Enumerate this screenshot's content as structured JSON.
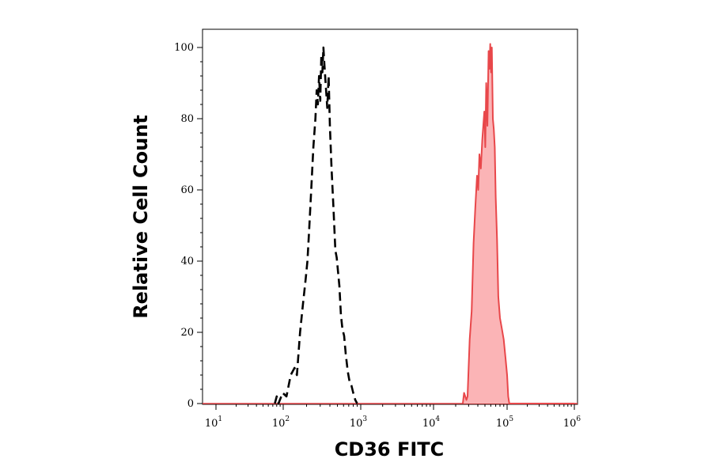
{
  "chart_data": {
    "type": "area",
    "title": "",
    "xlabel": "CD36 FITC",
    "ylabel": "Relative Cell Count",
    "x_scale": "log",
    "xlim": [
      10,
      1000000
    ],
    "ylim": [
      0,
      100
    ],
    "x_ticks": [
      {
        "base": "10",
        "exp": "1",
        "value": 10
      },
      {
        "base": "10",
        "exp": "2",
        "value": 100
      },
      {
        "base": "10",
        "exp": "3",
        "value": 1000
      },
      {
        "base": "10",
        "exp": "4",
        "value": 10000
      },
      {
        "base": "10",
        "exp": "5",
        "value": 100000
      },
      {
        "base": "10",
        "exp": "6",
        "value": 1000000
      }
    ],
    "y_ticks": [
      "0",
      "20",
      "40",
      "60",
      "80",
      "100"
    ],
    "series": [
      {
        "style": "dashed",
        "color": "#000000",
        "points": [
          [
            75,
            0
          ],
          [
            80,
            2
          ],
          [
            85,
            0
          ],
          [
            98,
            3
          ],
          [
            110,
            2
          ],
          [
            125,
            8
          ],
          [
            140,
            10
          ],
          [
            150,
            8
          ],
          [
            165,
            20
          ],
          [
            180,
            28
          ],
          [
            195,
            35
          ],
          [
            205,
            40
          ],
          [
            215,
            48
          ],
          [
            230,
            60
          ],
          [
            245,
            72
          ],
          [
            260,
            80
          ],
          [
            270,
            88
          ],
          [
            280,
            84
          ],
          [
            290,
            92
          ],
          [
            300,
            85
          ],
          [
            310,
            98
          ],
          [
            320,
            93
          ],
          [
            330,
            100
          ],
          [
            340,
            95
          ],
          [
            355,
            89
          ],
          [
            370,
            83
          ],
          [
            385,
            92
          ],
          [
            400,
            78
          ],
          [
            420,
            66
          ],
          [
            445,
            55
          ],
          [
            470,
            43
          ],
          [
            490,
            41
          ],
          [
            510,
            37
          ],
          [
            530,
            33
          ],
          [
            555,
            25
          ],
          [
            580,
            21
          ],
          [
            610,
            19
          ],
          [
            640,
            14
          ],
          [
            680,
            9
          ],
          [
            720,
            6
          ],
          [
            760,
            5
          ],
          [
            800,
            3
          ],
          [
            850,
            1
          ],
          [
            900,
            0
          ]
        ]
      },
      {
        "style": "filled",
        "color": "#e8474a",
        "fill": "#fbb4b6",
        "points": [
          [
            25000,
            0
          ],
          [
            26000,
            3
          ],
          [
            28000,
            1
          ],
          [
            29000,
            2
          ],
          [
            31000,
            18
          ],
          [
            33000,
            26
          ],
          [
            35000,
            45
          ],
          [
            37000,
            55
          ],
          [
            39000,
            64
          ],
          [
            40500,
            60
          ],
          [
            42000,
            70
          ],
          [
            44000,
            66
          ],
          [
            46000,
            74
          ],
          [
            47500,
            78
          ],
          [
            49000,
            82
          ],
          [
            50500,
            72
          ],
          [
            52000,
            90
          ],
          [
            54000,
            78
          ],
          [
            56000,
            99
          ],
          [
            57500,
            94
          ],
          [
            59000,
            101
          ],
          [
            60500,
            93
          ],
          [
            62000,
            100
          ],
          [
            64000,
            80
          ],
          [
            66000,
            77
          ],
          [
            68000,
            72
          ],
          [
            70000,
            58
          ],
          [
            73000,
            46
          ],
          [
            76000,
            30
          ],
          [
            80000,
            24
          ],
          [
            85000,
            21
          ],
          [
            90000,
            18
          ],
          [
            95000,
            13
          ],
          [
            100000,
            8
          ],
          [
            104000,
            2
          ],
          [
            108000,
            0
          ],
          [
            1000000,
            0
          ]
        ]
      }
    ]
  }
}
